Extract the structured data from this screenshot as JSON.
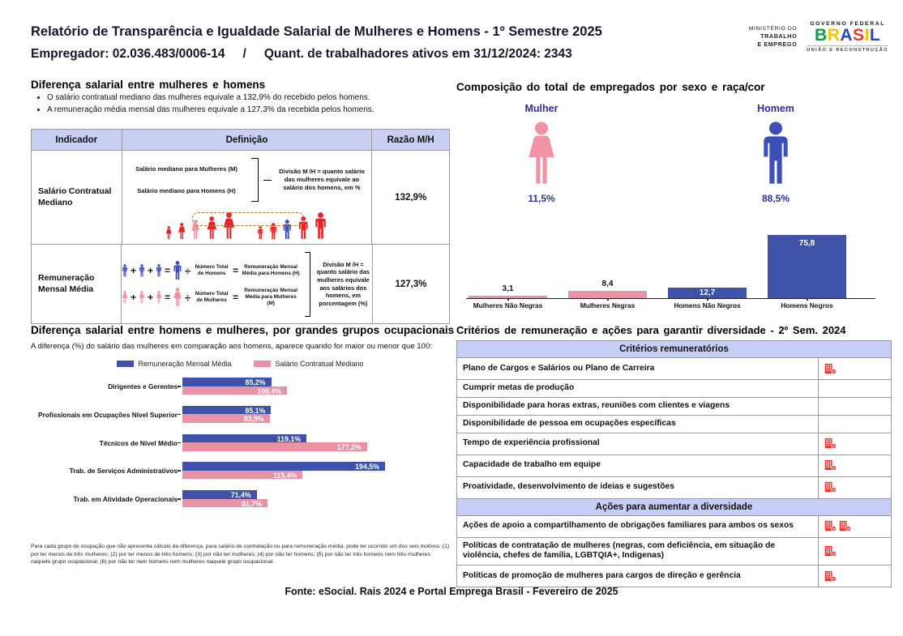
{
  "header": {
    "title": "Relatório de Transparência e Igualdade Salarial de Mulheres e Homens - 1º Semestre 2025",
    "employer": "Empregador: 02.036.483/0006-14",
    "separator": "/",
    "active_workers": "Quant. de trabalhadores ativos em 31/12/2024: 2343",
    "logo": {
      "ministry_lines": [
        "MINISTÉRIO DO",
        "TRABALHO",
        "E EMPREGO"
      ],
      "gov": "GOVERNO FEDERAL",
      "brand": "BRASIL",
      "brand_colors": [
        "#00a33d",
        "#fcc400",
        "#2a46c4",
        "#e23b30",
        "#f7c200",
        "#2a46c4"
      ],
      "tagline": "UNIÃO E RECONSTRUÇÃO"
    }
  },
  "salary_diff": {
    "title": "Diferença salarial entre mulheres e homens",
    "bullets": [
      "O salário contratual mediano das mulheres equivale a 132,9% do recebido pelos homens.",
      "A remuneração média mensal das mulheres equivale a 127,3% da recebida pelos homens."
    ],
    "table": {
      "headers": [
        "Indicador",
        "Definição",
        "Razão M/H"
      ],
      "rows": [
        {
          "indicator": "Salário Contratual Mediano",
          "ratio": "132,9%",
          "def_lines": [
            "Salário mediano para Mulheres (M)",
            "Salário mediano para Homens (H)"
          ],
          "def_note": "Divisão M /H = quanto salário das mulheres equivale ao salário dos homens, em %"
        },
        {
          "indicator": "Remuneração Mensal Média",
          "ratio": "127,3%",
          "men_eq": {
            "divide_label": "Número Total de Homens",
            "result_label": "Remuneração Mensal Média para Homens (H)"
          },
          "women_eq": {
            "divide_label": "Número Total de Mulheres",
            "result_label": "Remuneração Mensal Média para Mulheres (M)"
          },
          "def_note": "Divisão M /H = quanto salário das mulheres equivale aos salários dos homens, em porcentagem (%)"
        }
      ]
    }
  },
  "composition": {
    "title": "Composição do total de empregados por sexo e raça/cor",
    "female_label": "Mulher",
    "female_pct": "11,5%",
    "male_label": "Homem",
    "male_pct": "88,5%",
    "bars": [
      {
        "label": "Mulheres Não Negras",
        "value": 3.1,
        "display": "3,1",
        "color": "pink",
        "label_pos": "above"
      },
      {
        "label": "Mulheres Negras",
        "value": 8.4,
        "display": "8,4",
        "color": "pink",
        "label_pos": "above"
      },
      {
        "label": "Homens Não Negros",
        "value": 12.7,
        "display": "12,7",
        "color": "blue",
        "label_pos": "inside"
      },
      {
        "label": "Homens Negros",
        "value": 75.8,
        "display": "75,8",
        "color": "blue",
        "label_pos": "inside"
      }
    ]
  },
  "occupational": {
    "title": "Diferença salarial entre homens e mulheres, por grandes grupos ocupacionais",
    "subtitle": "A diferença (%) do salário das mulheres em comparação aos homens, aparece quando for maior ou menor que 100:",
    "legend": [
      "Remuneração Mensal Média",
      "Salário Contratual Mediano"
    ],
    "groups": [
      {
        "label": "Dirigentes e Gerentes",
        "blue": 85.2,
        "blue_display": "85,2%",
        "pink": 100.4,
        "pink_display": "100,4%"
      },
      {
        "label": "Profissionais em Ocupações Nível Superior",
        "blue": 85.1,
        "blue_display": "85,1%",
        "pink": 83.9,
        "pink_display": "83,9%"
      },
      {
        "label": "Técnicos de Nível Médio",
        "blue": 119.1,
        "blue_display": "119,1%",
        "pink": 177.2,
        "pink_display": "177,2%"
      },
      {
        "label": "Trab. de Serviços Administrativos",
        "blue": 194.5,
        "blue_display": "194,5%",
        "pink": 115.4,
        "pink_display": "115,4%"
      },
      {
        "label": "Trab. em Atividade Operacionais",
        "blue": 71.4,
        "blue_display": "71,4%",
        "pink": 81.7,
        "pink_display": "81,7%"
      }
    ],
    "footnote": "Para cada grupo de ocupação que não apresenta cálculo da diferença, para salário de contratação ou para remuneração média, pode ter ocorrido um dos seis motivos: (1) por ter menos de três mulheres; (2) por ter menos de três homens; (3) por não ter mulheres; (4) por não ter homens; (5) por não ter três homens nem três mulheres naquele grupo ocupacional; (6) por não ter nem homens nem mulheres naquele grupo ocupacional."
  },
  "criteria": {
    "title": "Critérios de remuneração e ações para garantir diversidade - 2º Sem. 2024",
    "section1": "Critérios remuneratórios",
    "remuneration_rows": [
      {
        "label": "Plano de Cargos e Salários ou Plano de Carreira",
        "icons": 1
      },
      {
        "label": "Cumprir metas de produção",
        "icons": 0
      },
      {
        "label": "Disponibilidade para horas extras, reuniões com clientes e viagens",
        "icons": 0
      },
      {
        "label": "Disponibilidade de pessoa em ocupações específicas",
        "icons": 0
      },
      {
        "label": "Tempo de experiência profissional",
        "icons": 1
      },
      {
        "label": "Capacidade de trabalho em equipe",
        "icons": 1
      },
      {
        "label": "Proatividade, desenvolvimento de ideias e sugestões",
        "icons": 1
      }
    ],
    "section2": "Ações para aumentar a diversidade",
    "diversity_rows": [
      {
        "label": "Ações de apoio a compartilhamento de obrigações familiares para ambos os sexos",
        "icons": 2
      },
      {
        "label": "Políticas de contratação de mulheres (negras, com deficiência, em situação de violência, chefes de família, LGBTQIA+, Indigenas)",
        "icons": 1
      },
      {
        "label": "Políticas de promoção de mulheres para cargos de direção e gerência",
        "icons": 1
      }
    ]
  },
  "footer": "Fonte: eSocial. Rais 2024 e Portal Emprega Brasil - Fevereiro de 2025",
  "colors": {
    "accent_blue": "#3d52a8",
    "accent_pink": "#e892a4",
    "person_red": "#e3262a",
    "person_pink": "#f093a4",
    "person_blue": "#3c4fb8",
    "navy": "#2b3990",
    "table_header_bg": "#c9cff2",
    "criteria_header_bg": "#c7cef6",
    "icon_red": "#e8372e"
  },
  "chart_data": [
    {
      "type": "bar",
      "title": "Composição do total de empregados por sexo e raça/cor",
      "categories": [
        "Mulheres Não Negras",
        "Mulheres Negras",
        "Homens Não Negros",
        "Homens Negros"
      ],
      "values": [
        3.1,
        8.4,
        12.7,
        75.8
      ],
      "unit": "%",
      "annotations": {
        "Mulher": 11.5,
        "Homem": 88.5
      },
      "xlabel": "",
      "ylabel": "",
      "ylim": [
        0,
        80
      ],
      "grid": false,
      "legend_position": "none"
    },
    {
      "type": "bar",
      "orientation": "horizontal",
      "title": "Diferença salarial entre homens e mulheres, por grandes grupos ocupacionais",
      "categories": [
        "Dirigentes e Gerentes",
        "Profissionais em Ocupações Nível Superior",
        "Técnicos de Nível Médio",
        "Trab. de Serviços Administrativos",
        "Trab. em Atividade Operacionais"
      ],
      "series": [
        {
          "name": "Remuneração Mensal Média",
          "values": [
            85.2,
            85.1,
            119.1,
            194.5,
            71.4
          ]
        },
        {
          "name": "Salário Contratual Mediano",
          "values": [
            100.4,
            83.9,
            177.2,
            115.4,
            81.7
          ]
        }
      ],
      "unit": "%",
      "xlabel": "",
      "ylabel": "",
      "xlim": [
        0,
        200
      ],
      "grid": false,
      "legend_position": "top-center"
    }
  ]
}
